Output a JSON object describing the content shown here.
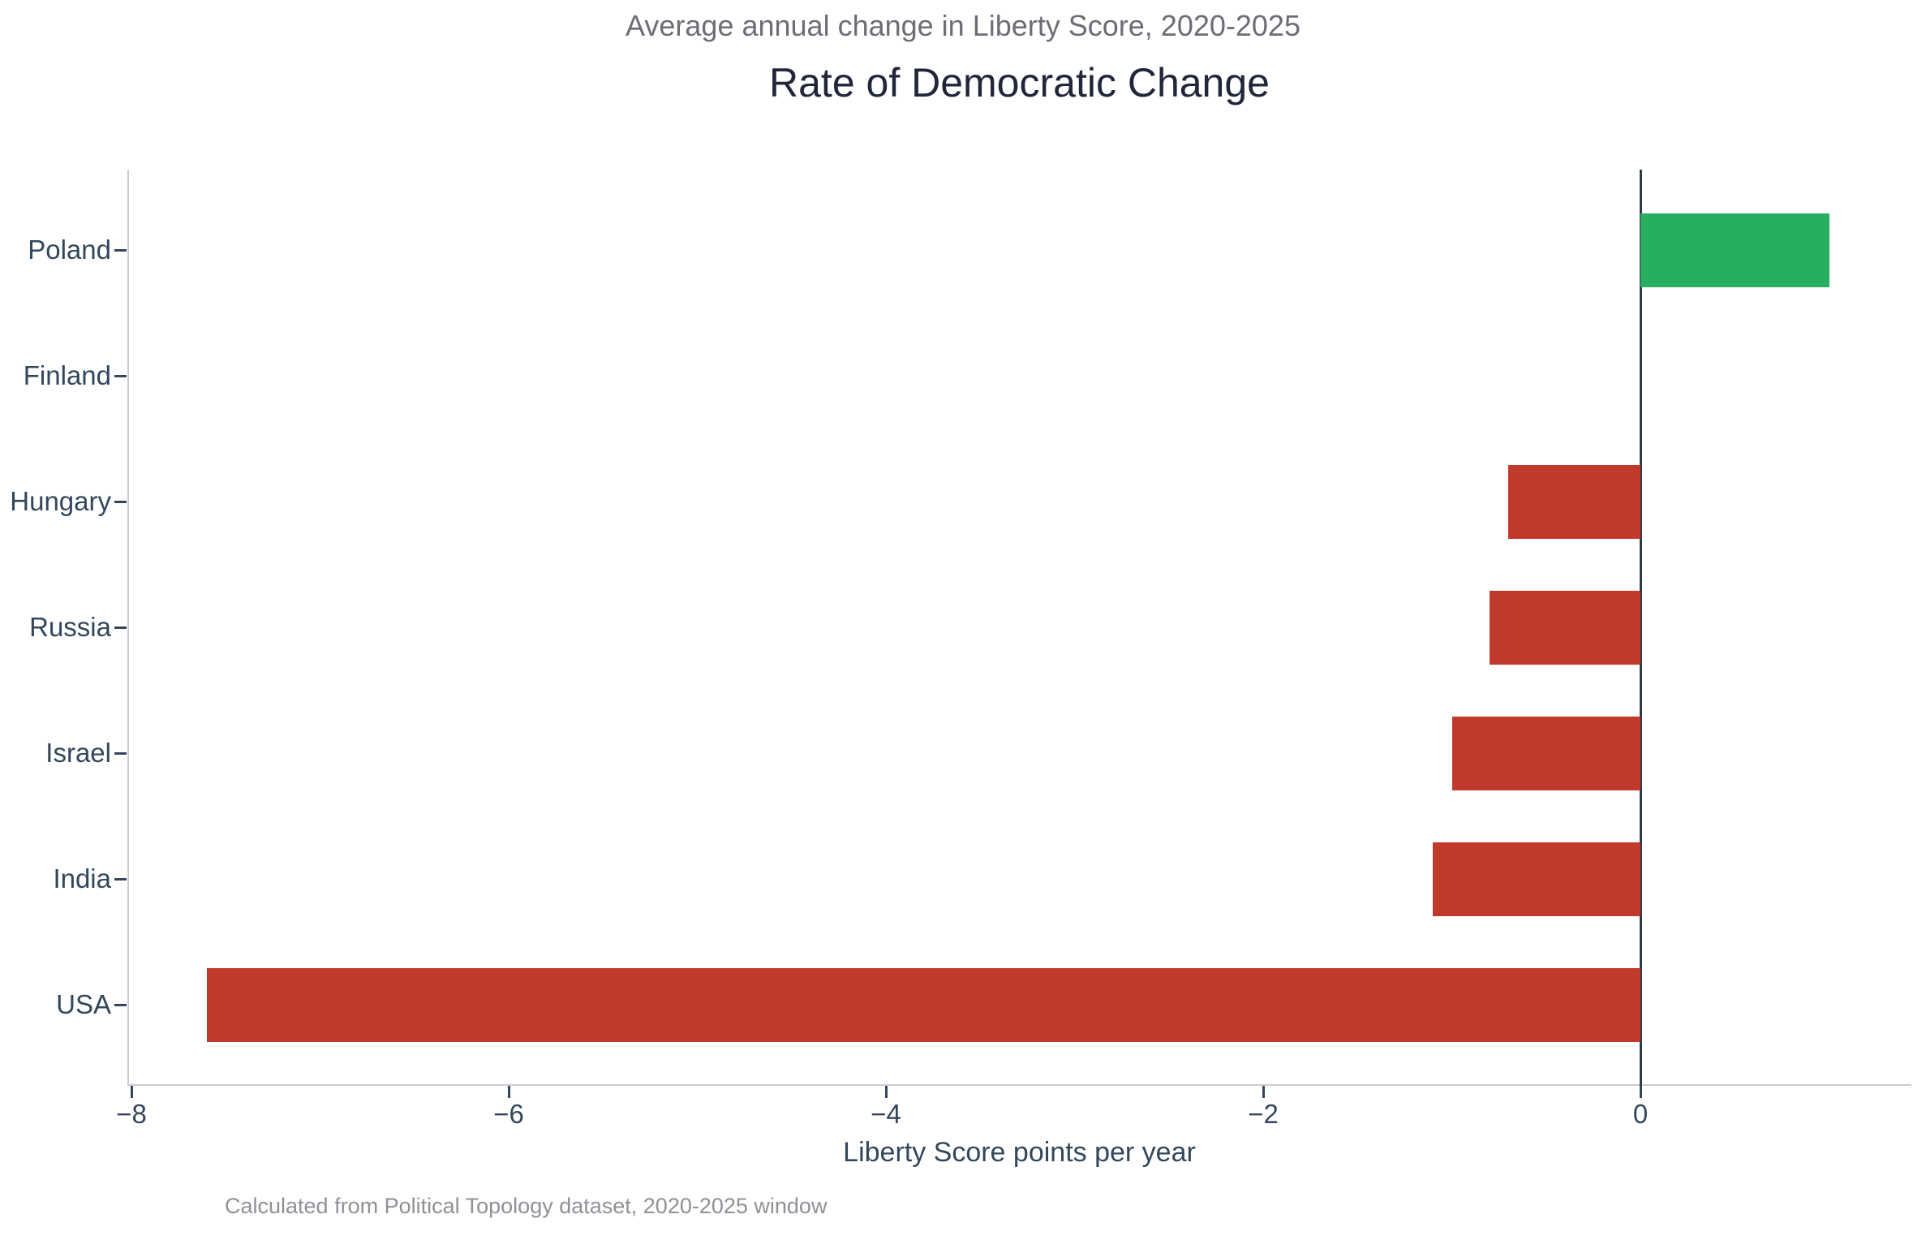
{
  "figure": {
    "suptitle": "Average annual change in Liberty Score, 2020-2025",
    "title": "Rate of Democratic Change",
    "xlabel": "Liberty Score points per year",
    "footer": "Calculated from Political Topology dataset, 2020-2025 window"
  },
  "chart_data": {
    "type": "bar",
    "orientation": "horizontal",
    "title": "Rate of Democratic Change",
    "subtitle": "Average annual change in Liberty Score, 2020-2025",
    "xlabel": "Liberty Score points per year",
    "ylabel": "",
    "footnote": "Calculated from Political Topology dataset, 2020-2025 window",
    "categories": [
      "Poland",
      "Finland",
      "Hungary",
      "Russia",
      "Israel",
      "India",
      "USA"
    ],
    "values": [
      1.0,
      0.0,
      -0.7,
      -0.8,
      -1.0,
      -1.1,
      -7.6
    ],
    "value_labels": [
      "+1.0",
      "0.0",
      "-0.7",
      "-0.8",
      "-1.0",
      "-1.1",
      "-7.6"
    ],
    "xlim": [
      -8.02,
      1.44
    ],
    "xticks": [
      -8,
      -6,
      -4,
      -2,
      0
    ],
    "xtick_labels": [
      "−8",
      "−6",
      "−4",
      "−2",
      "0"
    ],
    "grid": false,
    "legend": null,
    "zero_baseline": true,
    "colors": {
      "positive_bar": "#27ae60",
      "negative_bar": "#c0392b",
      "text": "#33475c",
      "title_text": "#22263a",
      "subtitle_text": "#6d6d77",
      "footer_text": "#909098",
      "zero_value_label": "#8a9299",
      "zero_line": "#2b3a4a",
      "spine": "#cccccc",
      "tick_mark": "#33475c"
    }
  }
}
